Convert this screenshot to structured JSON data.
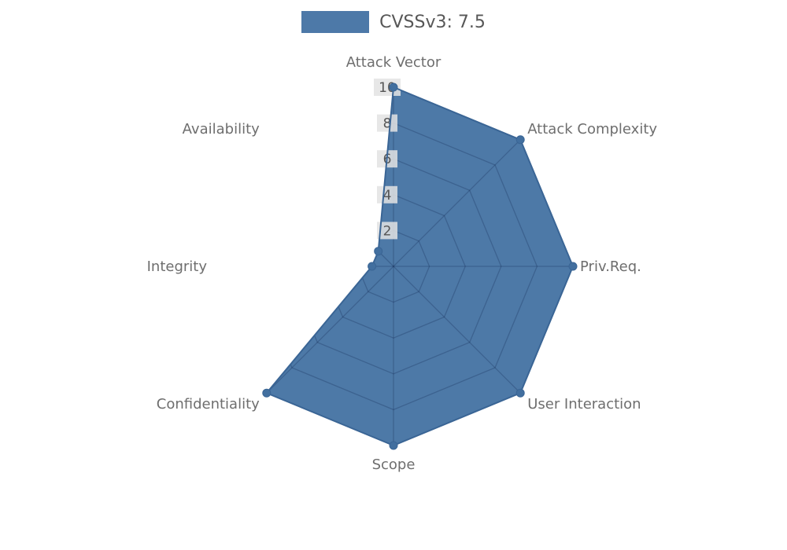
{
  "legend": {
    "label": "CVSSv3: 7.5",
    "swatch_color": "#4d79a8",
    "text_color": "#575757"
  },
  "chart_data": {
    "type": "radar",
    "title": "CVSSv3: 7.5",
    "categories": [
      "Attack Vector",
      "Attack Complexity",
      "Priv.Req.",
      "User Interaction",
      "Scope",
      "Confidentiality",
      "Integrity",
      "Availability"
    ],
    "series": [
      {
        "name": "CVSSv3: 7.5",
        "values": [
          10,
          10,
          10,
          10,
          10,
          10,
          1.2,
          1.2
        ]
      }
    ],
    "rmax": 10,
    "tick_values": [
      2,
      4,
      6,
      8,
      10
    ],
    "grid_on": true,
    "legend_position": "top-center",
    "fill_color": "#2e6198",
    "fill_opacity": 0.85,
    "line_color": "#3a6595",
    "marker_fill": "#426f9f",
    "grid_color": "rgba(0,20,60,0.22)",
    "label_color": "#6e6e6e",
    "tick_bg": "#e3e3e3",
    "tick_color": "#555555"
  }
}
